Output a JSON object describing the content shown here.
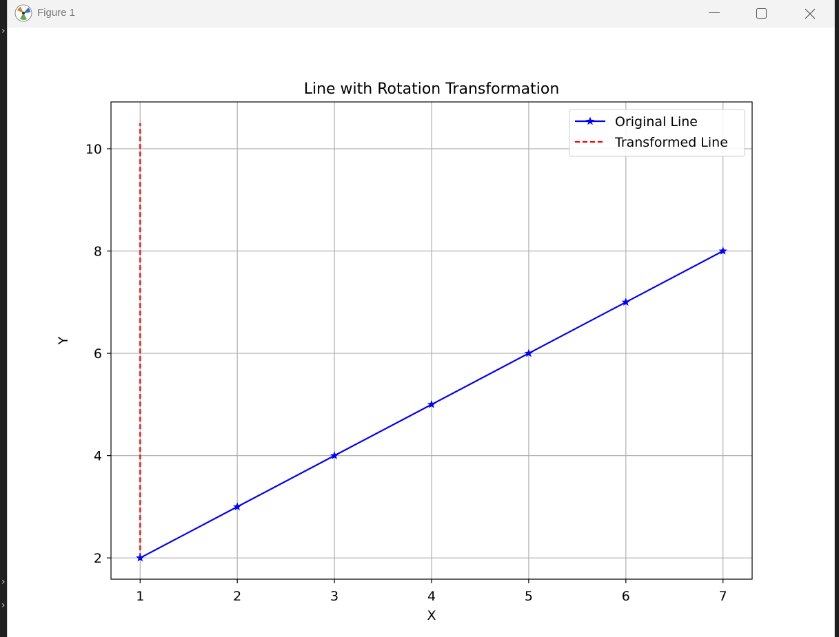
{
  "window": {
    "title": "Figure 1"
  },
  "colors": {
    "original": "#0000ff",
    "transformed": "#ff0000",
    "grid": "#b0b0b0",
    "axes": "#000000"
  },
  "icons": {
    "app": "matplotlib-icon",
    "minimize": "minimize-icon",
    "maximize": "maximize-icon",
    "close": "close-icon"
  },
  "chart_data": {
    "type": "line",
    "title": "Line with Rotation Transformation",
    "xlabel": "X",
    "ylabel": "Y",
    "xlim": [
      0.7,
      7.3
    ],
    "ylim": [
      1.585,
      10.915
    ],
    "xticks": [
      1,
      2,
      3,
      4,
      5,
      6,
      7
    ],
    "yticks": [
      2,
      4,
      6,
      8,
      10
    ],
    "grid": true,
    "legend_position": "top-right",
    "series": [
      {
        "name": "Original Line",
        "style": "solid",
        "marker": "star",
        "x": [
          1,
          2,
          3,
          4,
          5,
          6,
          7
        ],
        "y": [
          2,
          3,
          4,
          5,
          6,
          7,
          8
        ]
      },
      {
        "name": "Transformed Line",
        "style": "dashed",
        "marker": "none",
        "x": [
          1,
          1,
          1,
          1,
          1,
          1,
          1
        ],
        "y": [
          2,
          3.33,
          4.67,
          6,
          7.33,
          8.67,
          10.5
        ]
      }
    ]
  }
}
